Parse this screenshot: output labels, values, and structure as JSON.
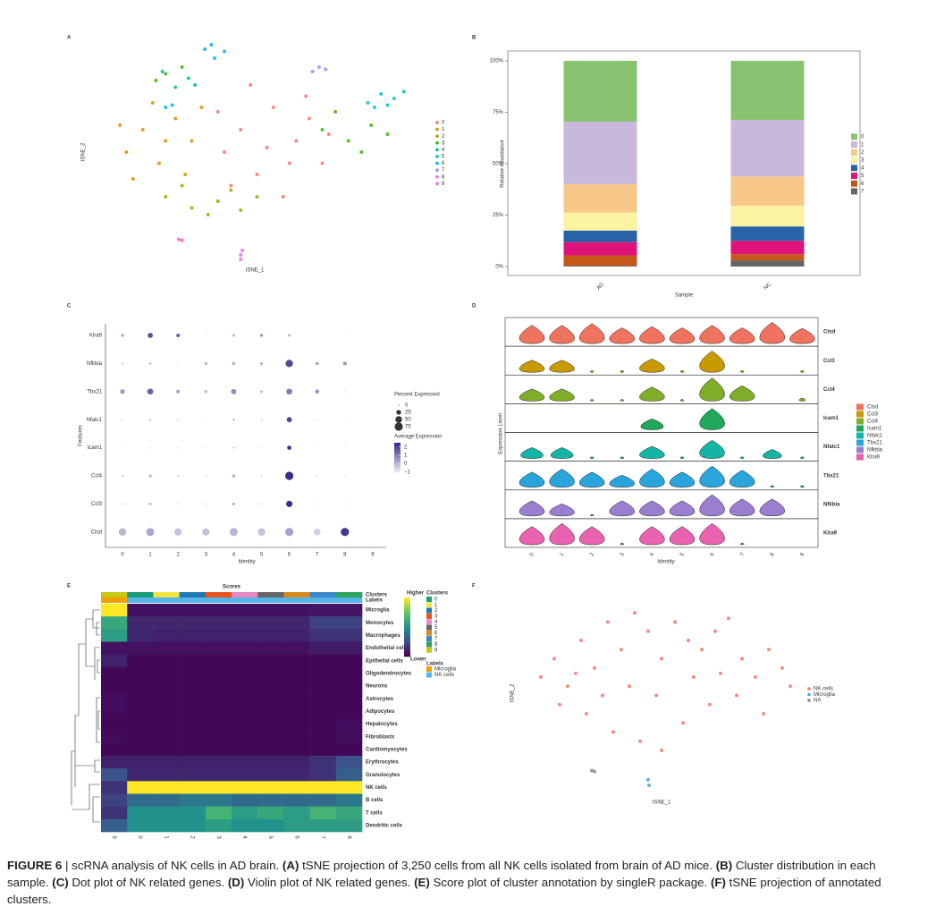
{
  "chart_data": [
    {
      "type": "scatter",
      "label": "A",
      "xlabel": "tSNE_1",
      "ylabel": "tSNE_2",
      "xlim": [
        0,
        100
      ],
      "ylim": [
        0,
        100
      ],
      "series": [
        {
          "name": "0",
          "color": "#f8766d",
          "x": [
            45,
            55,
            62,
            50,
            70,
            40,
            58,
            66,
            48,
            72,
            42,
            60,
            53,
            65,
            38
          ],
          "values": [
            60,
            70,
            55,
            40,
            45,
            50,
            30,
            65,
            80,
            58,
            35,
            45,
            52,
            75,
            68
          ]
        },
        {
          "name": "1",
          "color": "#d89000",
          "x": [
            10,
            15,
            20,
            25,
            12,
            30,
            18,
            28,
            8,
            22,
            33
          ],
          "values": [
            50,
            60,
            45,
            65,
            38,
            55,
            72,
            40,
            62,
            55,
            70
          ]
        },
        {
          "name": "2",
          "color": "#a3a500",
          "x": [
            22,
            30,
            38,
            45,
            50,
            27,
            35,
            42
          ],
          "values": [
            30,
            25,
            28,
            24,
            30,
            35,
            22,
            33
          ]
        },
        {
          "name": "3",
          "color": "#39b600",
          "x": [
            70,
            78,
            85,
            90,
            74,
            82,
            22,
            27,
            19
          ],
          "values": [
            60,
            55,
            62,
            58,
            68,
            50,
            85,
            88,
            82
          ]
        },
        {
          "name": "4",
          "color": "#00bf7d",
          "x": [
            25,
            29,
            21,
            31
          ],
          "values": [
            79,
            83,
            86,
            80
          ]
        },
        {
          "name": "5",
          "color": "#00bfc4",
          "x": [
            84,
            88,
            92,
            95,
            86,
            90
          ],
          "values": [
            72,
            76,
            74,
            77,
            70,
            71
          ]
        },
        {
          "name": "6",
          "color": "#00b0f6",
          "x": [
            34,
            37,
            40,
            36,
            22,
            24
          ],
          "values": [
            96,
            92,
            95,
            98,
            70,
            71
          ]
        },
        {
          "name": "7",
          "color": "#9590ff",
          "x": [
            67,
            69,
            71
          ],
          "values": [
            86,
            88,
            87
          ]
        },
        {
          "name": "8",
          "color": "#e76bf3",
          "x": [
            45,
            45.5,
            45
          ],
          "values": [
            4,
            6,
            2
          ]
        },
        {
          "name": "9",
          "color": "#ff62bc",
          "x": [
            26,
            27
          ],
          "values": [
            11,
            10.5
          ]
        }
      ]
    },
    {
      "type": "stacked_bar",
      "label": "B",
      "xlabel": "Sample",
      "ylabel": "Relative Abundance",
      "categories": [
        "AD",
        "NC"
      ],
      "ylim": [
        0,
        100
      ],
      "yticks": [
        {
          "value": 0,
          "label": "0%"
        },
        {
          "value": 25,
          "label": "25%"
        },
        {
          "value": 50,
          "label": "50%"
        },
        {
          "value": 75,
          "label": "75%"
        },
        {
          "value": 100,
          "label": "100%"
        }
      ],
      "series": [
        {
          "name": "7",
          "color": "#666666",
          "values": [
            0.4,
            3
          ]
        },
        {
          "name": "6",
          "color": "#c5571b",
          "values": [
            5,
            3
          ]
        },
        {
          "name": "5",
          "color": "#e0137a",
          "values": [
            6.5,
            6.5
          ]
        },
        {
          "name": "4",
          "color": "#2a62a8",
          "values": [
            5.6,
            7
          ]
        },
        {
          "name": "3",
          "color": "#fbf3a0",
          "values": [
            8.7,
            10
          ]
        },
        {
          "name": "2",
          "color": "#f7c88a",
          "values": [
            13.9,
            14.3
          ]
        },
        {
          "name": "1",
          "color": "#c8b8dc",
          "values": [
            30.3,
            27.5
          ]
        },
        {
          "name": "0",
          "color": "#88c46f",
          "values": [
            29.6,
            28.7
          ]
        }
      ]
    },
    {
      "type": "dot",
      "label": "C",
      "xlabel": "Identity",
      "ylabel": "Features",
      "categories": [
        "0",
        "1",
        "2",
        "3",
        "4",
        "5",
        "6",
        "7",
        "8",
        "9"
      ],
      "features": [
        "Klra9",
        "Nfkbia",
        "Tbx21",
        "Nfatc1",
        "Icam1",
        "Ccl4",
        "Ccl3",
        "Ctsd"
      ],
      "percent": [
        [
          10,
          30,
          15,
          2,
          8,
          10,
          8,
          0,
          0,
          null
        ],
        [
          5,
          8,
          3,
          10,
          12,
          10,
          60,
          10,
          15,
          null
        ],
        [
          25,
          40,
          15,
          12,
          30,
          10,
          40,
          20,
          5,
          null
        ],
        [
          3,
          5,
          3,
          2,
          5,
          3,
          30,
          2,
          0,
          null
        ],
        [
          0,
          2,
          2,
          0,
          3,
          0,
          20,
          0,
          0,
          null
        ],
        [
          5,
          10,
          5,
          3,
          12,
          3,
          75,
          3,
          0,
          null
        ],
        [
          3,
          8,
          3,
          3,
          10,
          3,
          45,
          0,
          0,
          null
        ],
        [
          60,
          70,
          60,
          60,
          70,
          65,
          75,
          50,
          75,
          null
        ]
      ],
      "average": [
        [
          0.2,
          1.8,
          1.5,
          -0.8,
          0,
          0.5,
          0,
          -1,
          -1,
          null
        ],
        [
          -0.3,
          -0.3,
          -0.8,
          0,
          0,
          0,
          2,
          0.5,
          0.5,
          null
        ],
        [
          0.5,
          1.5,
          0.3,
          -0.2,
          0.8,
          -0.3,
          1,
          0.5,
          -1,
          null
        ],
        [
          -0.5,
          -0.3,
          -0.5,
          -0.8,
          0,
          -0.5,
          2,
          -0.5,
          -1,
          null
        ],
        [
          -0.5,
          -0.5,
          -0.5,
          -0.5,
          0,
          -0.5,
          2.3,
          -0.5,
          -0.5,
          null
        ],
        [
          -0.3,
          0,
          -0.5,
          -0.5,
          0,
          -0.5,
          2.5,
          -0.5,
          -0.5,
          null
        ],
        [
          -0.3,
          0,
          -0.5,
          -0.5,
          0,
          -0.5,
          2.5,
          -0.5,
          -0.5,
          null
        ],
        [
          0,
          0.2,
          -0.3,
          -0.3,
          0,
          -0.3,
          0.3,
          -0.5,
          2.3,
          null
        ]
      ],
      "size_title": "Percent Expressed",
      "size_ticks": [
        0,
        25,
        50,
        75
      ],
      "color_title": "Average Expression",
      "color_lim": [
        -1,
        2.5
      ],
      "colors": [
        "#ece8f2",
        "#3b2a8a"
      ],
      "color_ticks": [
        2,
        1,
        0,
        {
          "value": -1,
          "label": "−1"
        }
      ]
    },
    {
      "type": "violin",
      "label": "D",
      "xlabel": "Identity",
      "ylabel": "Expression Level",
      "categories": [
        "0",
        "1",
        "2",
        "3",
        "4",
        "5",
        "6",
        "7",
        "8",
        "9"
      ],
      "ylim": [
        0,
        4
      ],
      "series": [
        {
          "name": "Ctsd",
          "color": "#f0735f",
          "values": [
            3,
            3,
            3.3,
            2.6,
            2.8,
            2.6,
            3,
            2.6,
            3.5,
            2.5
          ]
        },
        {
          "name": "Ccl3",
          "color": "#c99a00",
          "values": [
            2,
            2,
            0.3,
            0.3,
            2.2,
            0.3,
            3.5,
            0.3,
            0,
            0.3
          ]
        },
        {
          "name": "Ccl4",
          "color": "#7fad2a",
          "values": [
            2,
            2,
            0.3,
            0.3,
            2.3,
            0.3,
            3.8,
            2.5,
            0,
            0.5
          ]
        },
        {
          "name": "Icam1",
          "color": "#1fa85a",
          "values": [
            0,
            0,
            0,
            0,
            1.8,
            0,
            3.5,
            0,
            0,
            0
          ]
        },
        {
          "name": "Nfatc1",
          "color": "#14b5a5",
          "values": [
            1.8,
            1.8,
            0.3,
            0.3,
            2,
            0.3,
            3,
            0.3,
            1.5,
            0.3
          ]
        },
        {
          "name": "Tbx21",
          "color": "#2aa5dc",
          "values": [
            2.5,
            3,
            2.5,
            2,
            3,
            2.5,
            3.5,
            2.8,
            0.3,
            0.3
          ]
        },
        {
          "name": "Nfkbia",
          "color": "#9a7fd1",
          "values": [
            2.5,
            2,
            0.3,
            2.5,
            2.5,
            2.5,
            3.5,
            2.8,
            2.8,
            0
          ]
        },
        {
          "name": "Klra9",
          "color": "#e862b0",
          "values": [
            3,
            3.5,
            3,
            0.3,
            3,
            3,
            3.5,
            0.3,
            0,
            0
          ]
        }
      ]
    },
    {
      "type": "heatmap",
      "label": "E",
      "title": "Scores",
      "columns": [
        "9",
        "0",
        "1",
        "2",
        "3",
        "4",
        "5",
        "6",
        "7",
        "8"
      ],
      "rows": [
        "Microglia",
        "Monocytes",
        "Macrophages",
        "Endothelial cells",
        "Epithelial cells",
        "Oligodendrocytes",
        "Neurons",
        "Astrocytes",
        "Adipocytes",
        "Hepatocytes",
        "Fibroblasts",
        "Cardiomyocytes",
        "Erythrocytes",
        "Granulocytes",
        "NK cells",
        "B cells",
        "T cells",
        "Dendritic cells"
      ],
      "values": [
        [
          1,
          0.05,
          0.05,
          0.05,
          0.05,
          0.05,
          0.05,
          0.05,
          0.06,
          0.06
        ],
        [
          0.6,
          0.12,
          0.12,
          0.12,
          0.12,
          0.12,
          0.12,
          0.12,
          0.2,
          0.2
        ],
        [
          0.55,
          0.12,
          0.1,
          0.1,
          0.1,
          0.1,
          0.1,
          0.1,
          0.15,
          0.15
        ],
        [
          0.05,
          0.05,
          0.05,
          0.05,
          0.05,
          0.05,
          0.05,
          0.05,
          0.08,
          0.08
        ],
        [
          0.1,
          0.02,
          0.02,
          0.02,
          0.02,
          0.02,
          0.02,
          0.02,
          0.02,
          0.02
        ],
        [
          0.02,
          0.02,
          0.02,
          0.02,
          0.02,
          0.02,
          0.02,
          0.02,
          0.02,
          0.02
        ],
        [
          0.02,
          0.02,
          0.02,
          0.02,
          0.02,
          0.02,
          0.02,
          0.02,
          0.02,
          0.02
        ],
        [
          0.03,
          0.02,
          0.02,
          0.02,
          0.02,
          0.02,
          0.02,
          0.02,
          0.02,
          0.02
        ],
        [
          0.03,
          0.02,
          0.02,
          0.02,
          0.02,
          0.02,
          0.02,
          0.02,
          0.02,
          0.02
        ],
        [
          0.02,
          0.02,
          0.02,
          0.02,
          0.02,
          0.02,
          0.02,
          0.02,
          0.02,
          0.03
        ],
        [
          0.03,
          0.02,
          0.02,
          0.02,
          0.02,
          0.02,
          0.02,
          0.02,
          0.02,
          0.03
        ],
        [
          0.02,
          0.02,
          0.02,
          0.02,
          0.02,
          0.02,
          0.02,
          0.02,
          0.02,
          0.02
        ],
        [
          0.1,
          0.1,
          0.1,
          0.1,
          0.1,
          0.1,
          0.1,
          0.1,
          0.15,
          0.25
        ],
        [
          0.25,
          0.12,
          0.12,
          0.12,
          0.12,
          0.12,
          0.12,
          0.12,
          0.15,
          0.3
        ],
        [
          0.15,
          1,
          1,
          1,
          1,
          1,
          1,
          1,
          1,
          1
        ],
        [
          0.2,
          0.35,
          0.35,
          0.4,
          0.4,
          0.35,
          0.35,
          0.35,
          0.35,
          0.4
        ],
        [
          0.15,
          0.5,
          0.5,
          0.5,
          0.65,
          0.55,
          0.6,
          0.55,
          0.65,
          0.6
        ],
        [
          0.3,
          0.5,
          0.5,
          0.5,
          0.55,
          0.5,
          0.5,
          0.55,
          0.55,
          0.55
        ]
      ],
      "color_lim": [
        0,
        1
      ],
      "colormap": [
        "#440154",
        "#3b528b",
        "#21918c",
        "#5ec962",
        "#fde725"
      ],
      "color_high_label": "Higher",
      "color_low_label": "Lower",
      "annotation_rows": [
        "Clusters",
        "Labels"
      ],
      "clusters": [
        {
          "name": "0",
          "color": "#1b9e77"
        },
        {
          "name": "1",
          "color": "#f0e442"
        },
        {
          "name": "2",
          "color": "#1f78b4"
        },
        {
          "name": "3",
          "color": "#e7541e"
        },
        {
          "name": "4",
          "color": "#e78ac3"
        },
        {
          "name": "5",
          "color": "#666666"
        },
        {
          "name": "6",
          "color": "#d68a1f"
        },
        {
          "name": "7",
          "color": "#3a86c8"
        },
        {
          "name": "8",
          "color": "#2ca25f"
        },
        {
          "name": "9",
          "color": "#c7c814"
        }
      ],
      "labels": [
        {
          "name": "Microglia",
          "color": "#f0a000"
        },
        {
          "name": "NK cells",
          "color": "#56b4e9"
        }
      ],
      "column_label_index": [
        0,
        1,
        1,
        1,
        1,
        1,
        1,
        1,
        1,
        1
      ]
    },
    {
      "type": "scatter",
      "label": "F",
      "xlabel": "tSNE_1",
      "ylabel": "tSNE_2",
      "xlim": [
        0,
        100
      ],
      "ylim": [
        0,
        100
      ],
      "series": [
        {
          "name": "NK cells",
          "color": "#f8766d",
          "x": [
            5,
            10,
            15,
            20,
            25,
            30,
            35,
            40,
            45,
            50,
            55,
            60,
            65,
            70,
            75,
            80,
            85,
            90,
            95,
            98,
            12,
            22,
            32,
            42,
            50,
            58,
            68,
            78,
            88,
            38,
            48,
            62,
            28,
            18,
            72
          ],
          "values": [
            60,
            70,
            55,
            80,
            65,
            90,
            75,
            95,
            85,
            70,
            90,
            80,
            75,
            85,
            92,
            70,
            60,
            75,
            65,
            55,
            45,
            40,
            30,
            25,
            20,
            35,
            45,
            50,
            40,
            55,
            50,
            60,
            50,
            62,
            62
          ]
        },
        {
          "name": "Microglia",
          "color": "#3fa9d6",
          "x": [
            45,
            45.3
          ],
          "values": [
            4,
            1
          ]
        },
        {
          "name": "NA",
          "color": "#8c8c8c",
          "x": [
            24,
            25
          ],
          "values": [
            9,
            8.5
          ]
        }
      ]
    }
  ],
  "caption": [
    {
      "text": "FIGURE 6",
      "bold": true
    },
    {
      "text": " | scRNA analysis of NK cells in AD brain. ",
      "bold": false
    },
    {
      "text": "(A)",
      "bold": true
    },
    {
      "text": " tSNE projection of 3,250 cells from all NK cells isolated from brain of AD mice. ",
      "bold": false
    },
    {
      "text": "(B)",
      "bold": true
    },
    {
      "text": " Cluster distribution in each sample. ",
      "bold": false
    },
    {
      "text": "(C)",
      "bold": true
    },
    {
      "text": " Dot plot of NK related genes. ",
      "bold": false
    },
    {
      "text": "(D)",
      "bold": true
    },
    {
      "text": " Violin plot of NK related genes. ",
      "bold": false
    },
    {
      "text": "(E)",
      "bold": true
    },
    {
      "text": " Score plot of cluster annotation by singleR package. ",
      "bold": false
    },
    {
      "text": "(F)",
      "bold": true
    },
    {
      "text": " tSNE projection of annotated clusters.",
      "bold": false
    }
  ]
}
